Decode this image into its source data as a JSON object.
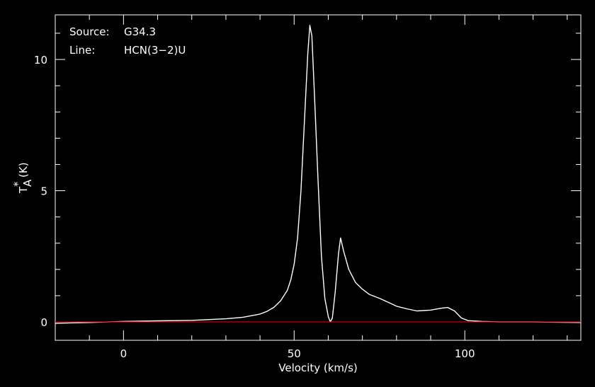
{
  "chart_data": {
    "type": "line",
    "xlabel": "Velocity (km/s)",
    "ylabel_main": "T",
    "ylabel_sup": "*",
    "ylabel_sub": "A",
    "ylabel_units": "(K)",
    "xlim": [
      -20,
      134
    ],
    "ylim": [
      -0.7,
      11.7
    ],
    "x_major_ticks": [
      0,
      50,
      100
    ],
    "x_minor_step": 10,
    "y_major_ticks": [
      0,
      5,
      10
    ],
    "y_minor_step": 1,
    "grid": false,
    "source_label": "Source:",
    "source_value": "G34.3",
    "line_label": "Line:",
    "line_value": "HCN(3−2)U",
    "series": [
      {
        "color": "#ffffff",
        "points": [
          [
            -20,
            -0.05
          ],
          [
            -10,
            -0.02
          ],
          [
            0,
            0.02
          ],
          [
            10,
            0.04
          ],
          [
            20,
            0.06
          ],
          [
            30,
            0.12
          ],
          [
            35,
            0.18
          ],
          [
            40,
            0.3
          ],
          [
            42,
            0.4
          ],
          [
            44,
            0.55
          ],
          [
            46,
            0.8
          ],
          [
            48,
            1.2
          ],
          [
            49,
            1.6
          ],
          [
            50,
            2.2
          ],
          [
            51,
            3.2
          ],
          [
            52,
            5.0
          ],
          [
            53,
            7.6
          ],
          [
            54,
            10.2
          ],
          [
            54.6,
            11.3
          ],
          [
            55.2,
            10.9
          ],
          [
            56,
            8.5
          ],
          [
            57,
            5.4
          ],
          [
            58,
            2.5
          ],
          [
            59,
            0.9
          ],
          [
            60,
            0.2
          ],
          [
            60.6,
            0.0
          ],
          [
            61.2,
            0.15
          ],
          [
            62,
            1.1
          ],
          [
            63,
            2.6
          ],
          [
            63.6,
            3.2
          ],
          [
            64.5,
            2.7
          ],
          [
            66,
            2.0
          ],
          [
            68,
            1.5
          ],
          [
            70,
            1.25
          ],
          [
            72,
            1.05
          ],
          [
            75,
            0.9
          ],
          [
            78,
            0.72
          ],
          [
            80,
            0.6
          ],
          [
            83,
            0.5
          ],
          [
            86,
            0.42
          ],
          [
            90,
            0.45
          ],
          [
            93,
            0.52
          ],
          [
            95,
            0.55
          ],
          [
            97,
            0.42
          ],
          [
            99,
            0.15
          ],
          [
            101,
            0.05
          ],
          [
            105,
            0.02
          ],
          [
            110,
            0.0
          ],
          [
            120,
            0.0
          ],
          [
            134,
            -0.02
          ]
        ]
      },
      {
        "color": "#cc0000",
        "points": [
          [
            -20,
            0
          ],
          [
            134,
            0
          ]
        ]
      }
    ]
  }
}
